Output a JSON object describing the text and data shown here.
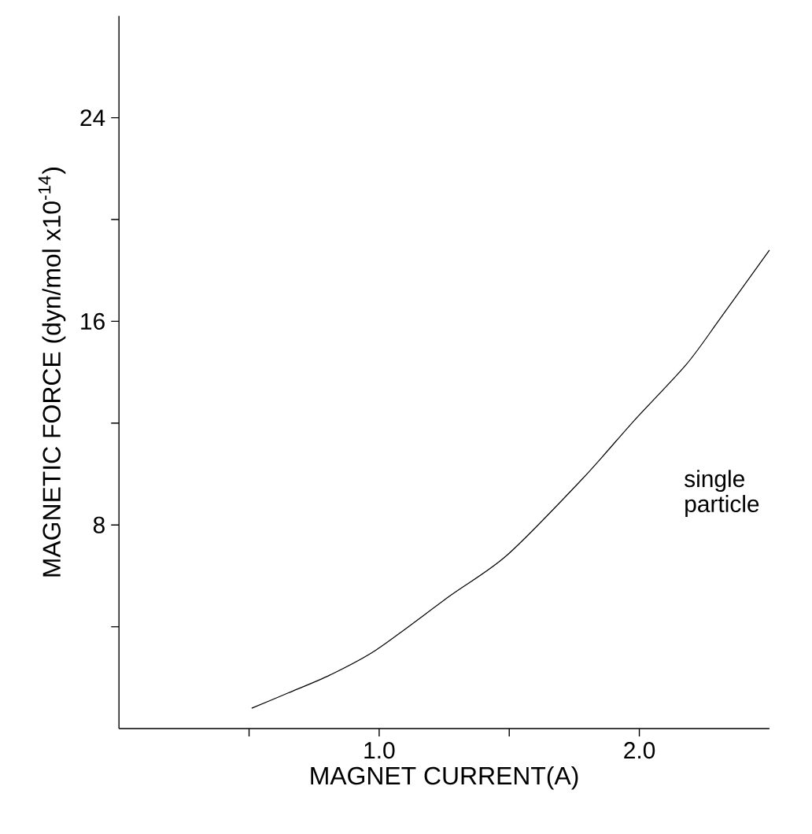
{
  "chart_data": {
    "type": "line",
    "xlabel": "MAGNET CURRENT(A)",
    "ylabel": "MAGNETIC FORCE (dyn/mol x10$^{-14}$)",
    "annotations": [
      "single particle"
    ],
    "xlim": [
      0,
      2.5
    ],
    "ylim": [
      0,
      28
    ],
    "xticks": [
      {
        "value": 0.5,
        "label": null
      },
      {
        "value": 1.0,
        "label": "1.0"
      },
      {
        "value": 1.5,
        "label": null
      },
      {
        "value": 2.0,
        "label": "2.0"
      }
    ],
    "yticks": [
      {
        "value": 4,
        "label": null
      },
      8,
      {
        "value": 12,
        "label": null
      },
      16,
      {
        "value": 20,
        "label": null
      },
      24
    ],
    "x": [
      0.51,
      0.65,
      0.81,
      0.99,
      1.27,
      1.49,
      1.78,
      1.98,
      2.18,
      2.31,
      2.5
    ],
    "series": [
      {
        "color": "#000000",
        "values": [
          0.8,
          1.4,
          2.1,
          3.1,
          5.2,
          6.8,
          9.8,
          12.1,
          14.3,
          16.1,
          18.8
        ]
      }
    ],
    "grid": false,
    "legend": false,
    "marker": "none",
    "line_style": "solid"
  }
}
